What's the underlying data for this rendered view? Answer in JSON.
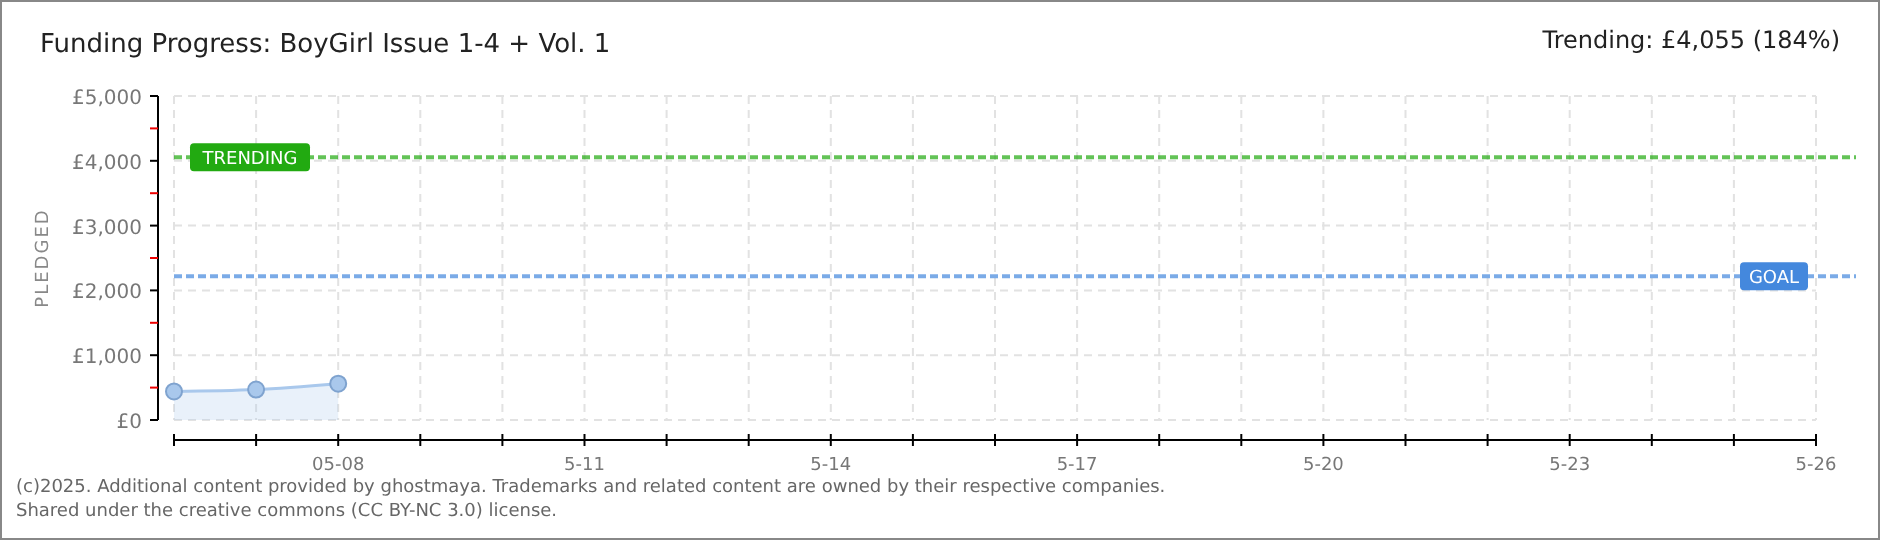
{
  "chart_data": {
    "type": "area",
    "title": "Funding Progress: BoyGirl Issue 1-4 + Vol. 1",
    "subtitle": "Trending:  £4,055 (184%)",
    "ylabel": "PLEDGED",
    "x": [
      "2025-05-06",
      "2025-05-07",
      "2025-05-08"
    ],
    "series": [
      {
        "color": "#a9c8ec",
        "values": [
          440,
          470,
          560
        ]
      }
    ],
    "marker": "circle",
    "xlim": [
      "2025-05-06",
      "2025-05-26"
    ],
    "xticks": [
      {
        "value": "2025-05-06",
        "label": null
      },
      {
        "value": "2025-05-07",
        "label": null
      },
      {
        "value": "2025-05-08",
        "label": "05-08"
      },
      {
        "value": "2025-05-09",
        "label": null
      },
      {
        "value": "2025-05-10",
        "label": null
      },
      {
        "value": "2025-05-11",
        "label": "5-11"
      },
      {
        "value": "2025-05-12",
        "label": null
      },
      {
        "value": "2025-05-13",
        "label": null
      },
      {
        "value": "2025-05-14",
        "label": "5-14"
      },
      {
        "value": "2025-05-15",
        "label": null
      },
      {
        "value": "2025-05-16",
        "label": null
      },
      {
        "value": "2025-05-17",
        "label": "5-17"
      },
      {
        "value": "2025-05-18",
        "label": null
      },
      {
        "value": "2025-05-19",
        "label": null
      },
      {
        "value": "2025-05-20",
        "label": "5-20"
      },
      {
        "value": "2025-05-21",
        "label": null
      },
      {
        "value": "2025-05-22",
        "label": null
      },
      {
        "value": "2025-05-23",
        "label": "5-23"
      },
      {
        "value": "2025-05-24",
        "label": null
      },
      {
        "value": "2025-05-25",
        "label": null
      },
      {
        "value": "2025-05-26",
        "label": "5-26"
      }
    ],
    "ylim": [
      0,
      5000
    ],
    "yticks": [
      {
        "value": 0,
        "label": "£0"
      },
      {
        "value": 500,
        "label": null
      },
      {
        "value": 1000,
        "label": "£1,000"
      },
      {
        "value": 1500,
        "label": null
      },
      {
        "value": 2000,
        "label": "£2,000"
      },
      {
        "value": 2500,
        "label": null
      },
      {
        "value": 3000,
        "label": "£3,000"
      },
      {
        "value": 3500,
        "label": null
      },
      {
        "value": 4000,
        "label": "£4,000"
      },
      {
        "value": 4500,
        "label": null
      },
      {
        "value": 5000,
        "label": "£5,000"
      }
    ],
    "grid": true,
    "ref_lines": [
      {
        "axis": "y",
        "value": 4055,
        "label": "TRENDING",
        "color": "#22aa11",
        "line_style": "dashed"
      },
      {
        "axis": "y",
        "value": 2220,
        "label": "GOAL",
        "color": "#4488dd",
        "line_style": "dashed"
      }
    ],
    "annotations": [
      "(c)2025. Additional content provided by ghostmaya. Trademarks and related content are owned by their respective companies.",
      "Shared under the creative commons (CC BY-NC 3.0) license."
    ]
  }
}
